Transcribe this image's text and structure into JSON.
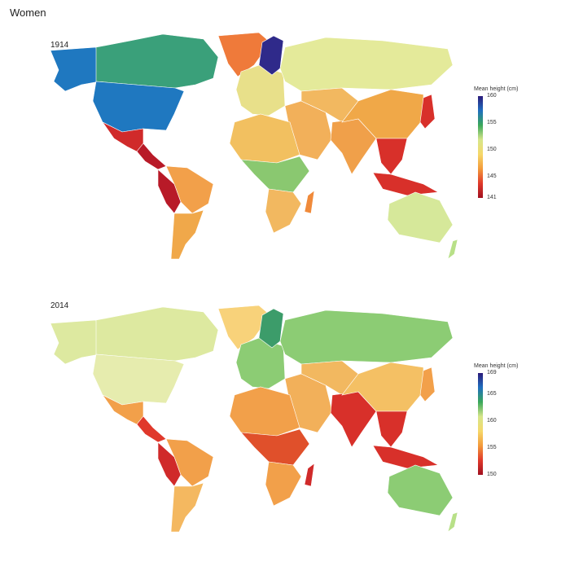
{
  "title": "Women",
  "panels": [
    {
      "year": "1914",
      "legend_title": "Mean height (cm)",
      "legend_ticks": [
        "160",
        "155",
        "150",
        "145",
        "141"
      ],
      "range": [
        141,
        160
      ],
      "gradient": [
        "#2b1a7a",
        "#1f6fbf",
        "#3aa85a",
        "#d6e68a",
        "#f6d86a",
        "#f39a3a",
        "#e0392b",
        "#a0101f"
      ],
      "region_colors": {
        "alaska": "#1f78c0",
        "canada": "#3aa07a",
        "greenland": "#ef7a3a",
        "usa": "#1f78c0",
        "mexico": "#d02a2a",
        "central_america": "#b81a28",
        "south_america_north": "#f2a04a",
        "andes": "#b81a28",
        "south_america_south": "#f0a84a",
        "europe_west": "#e8e08a",
        "scandinavia": "#2f2a8a",
        "russia": "#e4ea9a",
        "middle_east": "#f2b05a",
        "africa_north": "#f2c060",
        "africa_central": "#8ac870",
        "africa_south": "#f2b860",
        "madagascar": "#f08a3a",
        "india": "#f0a04a",
        "china": "#f0a848",
        "central_asia": "#f2b860",
        "se_asia": "#d8302a",
        "indonesia": "#d8302a",
        "japan": "#d8302a",
        "australia": "#d6e89a",
        "new_zealand": "#b8e088"
      }
    },
    {
      "year": "2014",
      "legend_title": "Mean height (cm)",
      "legend_ticks": [
        "169",
        "165",
        "160",
        "155",
        "150"
      ],
      "range": [
        150,
        169
      ],
      "gradient": [
        "#2b1a7a",
        "#1f6fbf",
        "#3aa85a",
        "#d6e68a",
        "#f6d86a",
        "#f39a3a",
        "#e0392b",
        "#a0101f"
      ],
      "region_colors": {
        "alaska": "#dde9a0",
        "canada": "#dde9a0",
        "greenland": "#f8d27a",
        "usa": "#e6ecae",
        "mexico": "#f2a04a",
        "central_america": "#e0382b",
        "south_america_north": "#f2a04a",
        "andes": "#d02a2a",
        "south_america_south": "#f4b860",
        "europe_west": "#8ccc74",
        "scandinavia": "#3c9c6a",
        "russia": "#8ccc74",
        "middle_east": "#f2b05a",
        "africa_north": "#f2a04a",
        "africa_central": "#e0502b",
        "africa_south": "#f2a04a",
        "madagascar": "#d02a2a",
        "india": "#d8302a",
        "china": "#f4c064",
        "central_asia": "#f2b860",
        "se_asia": "#d8302a",
        "indonesia": "#d8302a",
        "japan": "#f2a04a",
        "australia": "#8ccc74",
        "new_zealand": "#b8e088"
      }
    }
  ]
}
